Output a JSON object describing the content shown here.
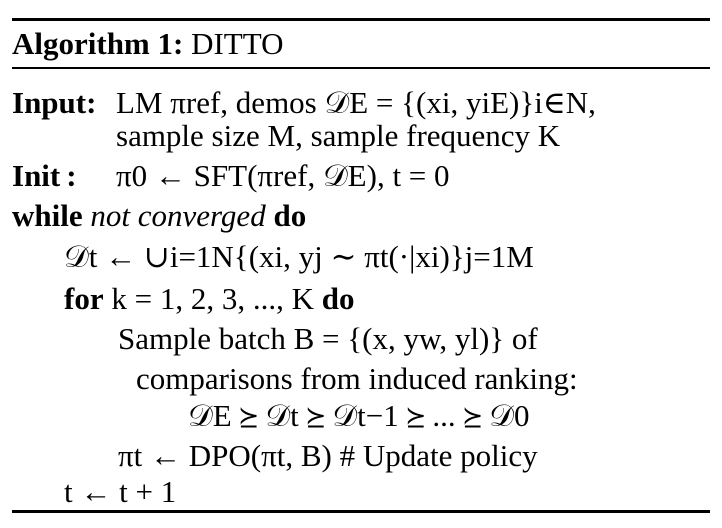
{
  "algorithm": {
    "label": "Algorithm 1:",
    "name": "DITTO"
  },
  "input": {
    "keyword": "Input",
    "colon": ":",
    "line1": "LM πref, demos 𝒟E = {(xi, yiE)}i∈N,",
    "line2": "sample size M, sample frequency K"
  },
  "init": {
    "keyword": "Init",
    "colon": ":",
    "text": "π0 ← SFT(πref, 𝒟E), t = 0"
  },
  "loop": {
    "while_keyword": "while",
    "condition": "not converged",
    "do_keyword": "do",
    "dt_line": "𝒟t ← ∪i=1N{(xi, yj ∼ πt(·|xi)}j=1M",
    "for_keyword": "for",
    "for_range": "k = 1, 2, 3, ..., K",
    "for_do": "do",
    "sample_line1": "Sample batch B = {(x, yw, yl)} of",
    "sample_line2": "comparisons from induced ranking:",
    "ranking": "𝒟E ⪰ 𝒟t ⪰ 𝒟t−1 ⪰ ... ⪰ 𝒟0",
    "dpo_line": "πt ← DPO(πt, B) # Update policy",
    "t_update": "t ← t + 1"
  }
}
